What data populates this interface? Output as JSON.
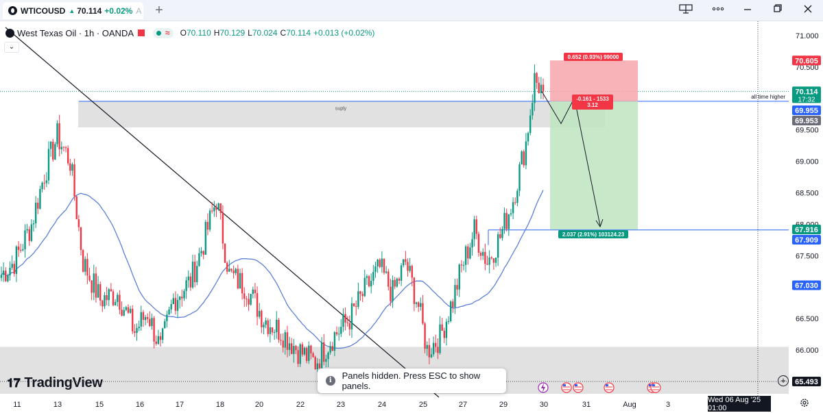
{
  "tab": {
    "symbol": "WTICOUSD",
    "price": "70.114",
    "change": "+0.02%",
    "tail": "A"
  },
  "legend": {
    "title": "West Texas Oil · 1h · OANDA",
    "o": "70.110",
    "h": "70.129",
    "l": "70.024",
    "c": "70.114",
    "chg": "+0.013 (+0.02%)",
    "o_label": "O",
    "h_label": "H",
    "l_label": "L",
    "c_label": "C"
  },
  "toast": {
    "text": "Panels hidden. Press ESC to show panels."
  },
  "brand": {
    "name": "TradingView"
  },
  "datebox": {
    "text": "Wed 06 Aug '25   01:00"
  },
  "colors": {
    "up": "#089981",
    "down": "#f23645",
    "ma": "#5b7fd6",
    "hline": "#2962ff",
    "zone": "#dedede",
    "risk": "#f7a6ad",
    "reward": "#bde5c0"
  },
  "icons": [
    "layout-icon",
    "more-icon",
    "minimize-icon",
    "restore-icon",
    "close-icon",
    "info-icon",
    "settings-icon",
    "plus-icon",
    "chevron-down-icon",
    "lightning-icon",
    "us-flag-icon"
  ],
  "chart_data": {
    "type": "candlestick",
    "symbol": "West Texas Oil",
    "interval": "1h",
    "ylim": [
      65.4,
      71.25
    ],
    "y_ticks": [
      "71.000",
      "70.500",
      "69.500",
      "69.000",
      "68.500",
      "68.000",
      "67.500",
      "66.500",
      "66.000"
    ],
    "x_ticks": [
      "11",
      "13",
      "15",
      "16",
      "17",
      "18",
      "20",
      "22",
      "23",
      "24",
      "25",
      "27",
      "29",
      "30",
      "31",
      "Aug",
      "3"
    ],
    "price_labels": [
      {
        "text": "70.605",
        "value": 70.605,
        "color": "#f23645"
      },
      {
        "text": "70.114",
        "sub": "17:32",
        "value": 70.114,
        "color": "#089981"
      },
      {
        "text": "69.955",
        "value": 69.955,
        "color": "#2962ff"
      },
      {
        "text": "69.953",
        "value": 69.953,
        "color": "#6a6d78"
      },
      {
        "text": "67.916",
        "value": 67.916,
        "color": "#089981"
      },
      {
        "text": "67.909",
        "value": 67.909,
        "color": "#2962ff"
      },
      {
        "text": "67.030",
        "value": 67.03,
        "color": "#2962ff"
      },
      {
        "text": "65.493",
        "value": 65.493,
        "color": "#131722"
      }
    ],
    "annotations": {
      "supply_label": "suply",
      "ath_label": "all time higher",
      "risk_label": "0.652 (0.93%) 99000",
      "reward_label": "2.037 (2.91%) 103124.23",
      "mid_label_1": "-0.161 - 1533",
      "mid_label_2": "3.12"
    },
    "zones": {
      "supply": [
        69.54,
        69.96
      ],
      "demand": [
        65.4,
        66.05
      ]
    },
    "position": {
      "entry": 69.955,
      "stop": 70.605,
      "target": 67.916
    },
    "hlines": [
      69.955,
      67.909
    ],
    "anchors": [
      [
        0,
        67.2
      ],
      [
        6,
        67.4
      ],
      [
        14,
        68.0
      ],
      [
        20,
        68.8
      ],
      [
        26,
        69.4
      ],
      [
        32,
        69.0
      ],
      [
        38,
        67.4
      ],
      [
        46,
        66.8
      ],
      [
        54,
        66.9
      ],
      [
        62,
        66.3
      ],
      [
        68,
        66.6
      ],
      [
        74,
        66.0
      ],
      [
        80,
        66.8
      ],
      [
        88,
        67.1
      ],
      [
        94,
        67.7
      ],
      [
        100,
        68.4
      ],
      [
        106,
        67.2
      ],
      [
        114,
        67.0
      ],
      [
        122,
        66.5
      ],
      [
        130,
        66.3
      ],
      [
        138,
        66.0
      ],
      [
        146,
        65.8
      ],
      [
        154,
        66.2
      ],
      [
        162,
        66.5
      ],
      [
        170,
        67.0
      ],
      [
        176,
        67.3
      ],
      [
        182,
        66.9
      ],
      [
        188,
        67.4
      ],
      [
        194,
        66.7
      ],
      [
        198,
        66.0
      ],
      [
        204,
        66.2
      ],
      [
        210,
        66.8
      ],
      [
        214,
        67.3
      ],
      [
        220,
        67.9
      ],
      [
        226,
        67.4
      ],
      [
        232,
        67.8
      ],
      [
        238,
        68.4
      ],
      [
        244,
        69.3
      ],
      [
        248,
        70.3
      ],
      [
        252,
        70.114
      ]
    ]
  }
}
